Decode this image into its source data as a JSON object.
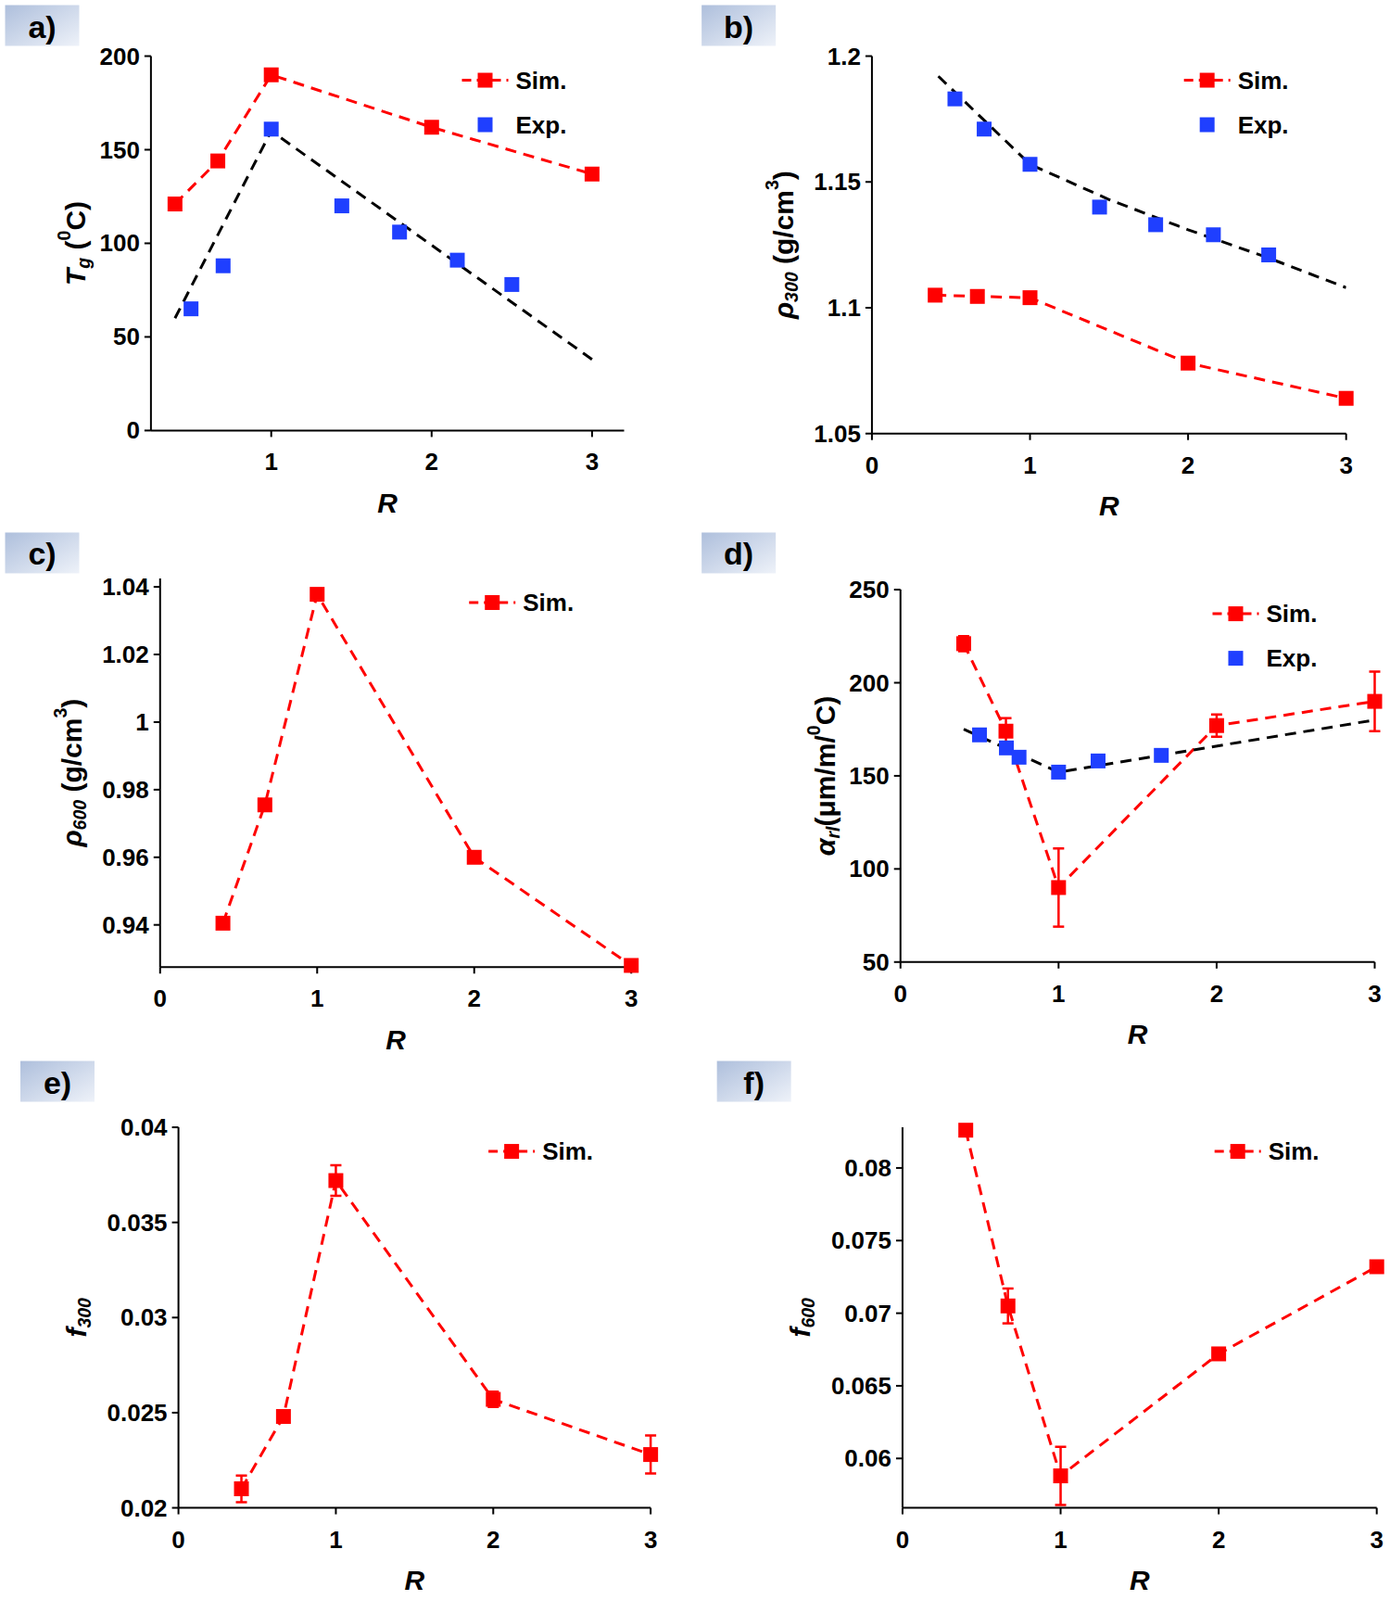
{
  "chart_data": [
    {
      "type": "line",
      "panel": "a)",
      "xlabel": "R",
      "ylabel": [
        {
          "text": "T",
          "italic": true
        },
        {
          "text": "g",
          "sub": true,
          "italic": true
        },
        {
          "text": " ("
        },
        {
          "text": "0",
          "sup": true
        },
        {
          "text": "C)"
        }
      ],
      "xlim": [
        0.25,
        3.2
      ],
      "ylim": [
        0,
        200
      ],
      "xticks": [
        1,
        2,
        3
      ],
      "yticks": [
        0,
        50,
        100,
        150,
        200
      ],
      "legend": "upper right",
      "series": [
        {
          "name": "Sim.",
          "type": "line",
          "color": "#ff0000",
          "marker": "square",
          "line_style": "dashed",
          "x": [
            0.4,
            0.667,
            1,
            2,
            3
          ],
          "values": [
            121,
            144,
            190,
            162,
            137
          ]
        },
        {
          "name": "Exp.",
          "type": "scatter",
          "color": "#1f3fff",
          "marker": "square",
          "x": [
            0.5,
            0.7,
            1,
            1.44,
            1.8,
            2.16,
            2.5
          ],
          "values": [
            65,
            88,
            161,
            120,
            106,
            91,
            78
          ]
        },
        {
          "type": "line",
          "color": "#000000",
          "marker": "none",
          "line_style": "dashed",
          "x": [
            0.4,
            1,
            3
          ],
          "values": [
            60,
            160,
            38
          ]
        }
      ]
    },
    {
      "type": "line",
      "panel": "b)",
      "xlabel": "R",
      "ylabel": [
        {
          "text": "ρ",
          "italic": true
        },
        {
          "text": "300",
          "sub": true,
          "italic": true
        },
        {
          "text": " (g/cm"
        },
        {
          "text": "3",
          "sup": true
        },
        {
          "text": ")"
        }
      ],
      "xlim": [
        0,
        3
      ],
      "ylim": [
        1.05,
        1.2
      ],
      "xticks": [
        0,
        1,
        2,
        3
      ],
      "yticks": [
        1.05,
        1.1,
        1.15,
        1.2
      ],
      "legend": "upper right",
      "series": [
        {
          "name": "Sim.",
          "type": "line",
          "color": "#ff0000",
          "marker": "square",
          "line_style": "dashed",
          "x": [
            0.4,
            0.667,
            1,
            2,
            3
          ],
          "values": [
            1.105,
            1.1045,
            1.104,
            1.078,
            1.064
          ]
        },
        {
          "name": "Exp.",
          "type": "scatter",
          "color": "#1f3fff",
          "marker": "square",
          "x": [
            0.525,
            0.71,
            1,
            1.44,
            1.795,
            2.16,
            2.51
          ],
          "values": [
            1.183,
            1.171,
            1.157,
            1.14,
            1.133,
            1.129,
            1.121
          ]
        },
        {
          "type": "line",
          "color": "#000000",
          "marker": "none",
          "line_style": "dashed",
          "x": [
            0.42,
            1,
            1.5,
            2,
            2.5,
            3
          ],
          "values": [
            1.192,
            1.157,
            1.143,
            1.131,
            1.12,
            1.108
          ]
        }
      ]
    },
    {
      "type": "line",
      "panel": "c)",
      "xlabel": "R",
      "ylabel": [
        {
          "text": "ρ",
          "italic": true
        },
        {
          "text": "600",
          "sub": true,
          "italic": true
        },
        {
          "text": " (g/cm"
        },
        {
          "text": "3",
          "sup": true
        },
        {
          "text": ")"
        }
      ],
      "xlim": [
        0,
        3
      ],
      "ylim": [
        0.9275,
        1.0425
      ],
      "xticks": [
        0,
        1,
        2,
        3
      ],
      "yticks": [
        0.94,
        0.96,
        0.98,
        1,
        1.02,
        1.04
      ],
      "legend": "upper right",
      "series": [
        {
          "name": "Sim.",
          "type": "line",
          "color": "#ff0000",
          "marker": "square",
          "line_style": "dashed",
          "x": [
            0.4,
            0.667,
            1,
            2,
            3
          ],
          "values": [
            0.9405,
            0.9755,
            1.0378,
            0.96,
            0.928
          ]
        }
      ]
    },
    {
      "type": "line",
      "panel": "d)",
      "xlabel": "R",
      "ylabel": [
        {
          "text": "α",
          "italic": true
        },
        {
          "text": "rl",
          "sub": true,
          "italic": true
        },
        {
          "text": "(μm/m/"
        },
        {
          "text": "0",
          "sup": true
        },
        {
          "text": "C)"
        }
      ],
      "xlim": [
        0,
        3
      ],
      "ylim": [
        50,
        250
      ],
      "xticks": [
        0,
        1,
        2,
        3
      ],
      "yticks": [
        50,
        100,
        150,
        200,
        250
      ],
      "legend": "upper right",
      "series": [
        {
          "name": "Sim.",
          "type": "line",
          "color": "#ff0000",
          "marker": "square",
          "line_style": "dashed",
          "x": [
            0.4,
            0.667,
            1,
            2,
            3
          ],
          "values": [
            221,
            174,
            90,
            177,
            190
          ],
          "errors": [
            4,
            7,
            21,
            6,
            16
          ]
        },
        {
          "name": "Exp.",
          "type": "scatter",
          "color": "#1f3fff",
          "marker": "square",
          "x": [
            0.5,
            0.67,
            0.75,
            1,
            1.25,
            1.65
          ],
          "values": [
            172,
            165,
            160,
            152,
            158,
            161
          ]
        },
        {
          "type": "line",
          "color": "#000000",
          "marker": "none",
          "line_style": "dashed",
          "x": [
            0.4,
            1,
            3
          ],
          "values": [
            175,
            152,
            180
          ]
        }
      ]
    },
    {
      "type": "line",
      "panel": "e)",
      "xlabel": "R",
      "ylabel": [
        {
          "text": "f",
          "italic": true
        },
        {
          "text": "300",
          "sub": true,
          "italic": true
        }
      ],
      "xlim": [
        0,
        3
      ],
      "ylim": [
        0.02,
        0.04
      ],
      "xticks": [
        0,
        1,
        2,
        3
      ],
      "yticks": [
        0.02,
        0.025,
        0.03,
        0.035,
        0.04
      ],
      "legend": "upper right",
      "series": [
        {
          "name": "Sim.",
          "type": "line",
          "color": "#ff0000",
          "marker": "square",
          "line_style": "dashed",
          "x": [
            0.4,
            0.667,
            1,
            2,
            3
          ],
          "values": [
            0.021,
            0.0248,
            0.0372,
            0.0257,
            0.0228
          ],
          "errors": [
            0.0007,
            0.0002,
            0.0008,
            0.0004,
            0.001
          ]
        }
      ]
    },
    {
      "type": "line",
      "panel": "f)",
      "xlabel": "R",
      "ylabel": [
        {
          "text": "f",
          "italic": true
        },
        {
          "text": "600",
          "sub": true,
          "italic": true
        }
      ],
      "xlim": [
        0,
        3
      ],
      "ylim": [
        0.0566,
        0.0828
      ],
      "xticks": [
        0,
        1,
        2,
        3
      ],
      "yticks": [
        0.06,
        0.065,
        0.07,
        0.075,
        0.08
      ],
      "legend": "upper right",
      "series": [
        {
          "name": "Sim.",
          "type": "line",
          "color": "#ff0000",
          "marker": "square",
          "line_style": "dashed",
          "x": [
            0.4,
            0.667,
            1,
            2,
            3
          ],
          "values": [
            0.0826,
            0.0705,
            0.0588,
            0.0672,
            0.0732
          ],
          "errors": [
            0.0001,
            0.0012,
            0.002,
            0.0004,
            0.0002
          ]
        }
      ]
    }
  ]
}
